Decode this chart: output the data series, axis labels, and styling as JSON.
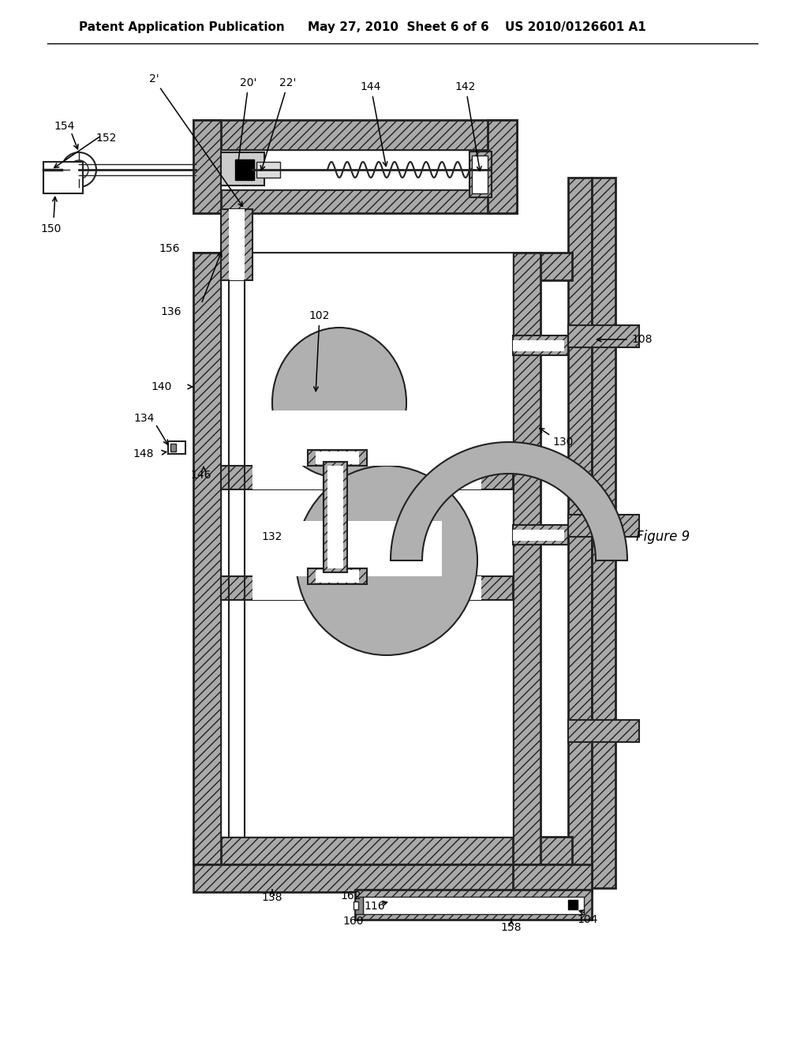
{
  "bg_color": "#ffffff",
  "header_text1": "Patent Application Publication",
  "header_text2": "May 27, 2010  Sheet 6 of 6",
  "header_text3": "US 2010/0126601 A1",
  "figure_label": "Figure 9",
  "line_color": "#222222",
  "hatch_fc": "#aaaaaa",
  "hatch_pattern": "///",
  "labels": {
    "2prime": "2'",
    "20prime": "20'",
    "22prime": "22'",
    "102": "102",
    "104": "104",
    "108": "108",
    "116": "116",
    "130": "130",
    "132": "132",
    "134": "134",
    "136": "136",
    "138": "138",
    "140": "140",
    "142": "142",
    "144": "144",
    "146": "146",
    "148": "148",
    "150": "150",
    "152": "152",
    "154": "154",
    "156": "156",
    "158": "158",
    "160": "160",
    "162": "162"
  }
}
